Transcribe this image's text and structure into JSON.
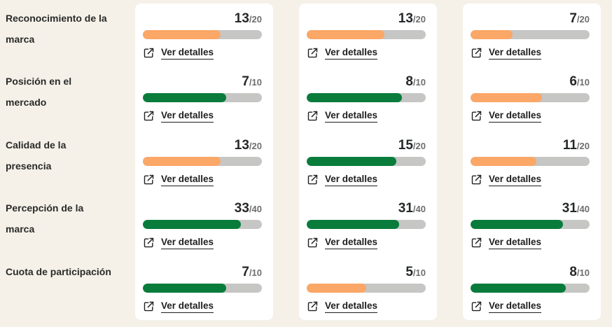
{
  "theme": {
    "page_bg": "#F5F1E8",
    "card_bg": "#FFFFFF",
    "bar_track": "#C6C6C5",
    "bar_orange": "#FBA767",
    "bar_green": "#097C3C",
    "text_dark": "#25282A",
    "text_gray": "#6E6E6E",
    "label_color": "#2A2A2A",
    "link_color": "#1E1E1E"
  },
  "link_label": "Ver detalles",
  "metrics": [
    {
      "label": "Reconocimiento de la marca"
    },
    {
      "label": "Posición en el mercado"
    },
    {
      "label": "Calidad de la presencia"
    },
    {
      "label": "Percepción de la marca"
    },
    {
      "label": "Cuota de participación"
    }
  ],
  "columns": [
    {
      "cells": [
        {
          "score": 13,
          "max": 20,
          "max_label": "/20",
          "percent": 65,
          "color": "orange"
        },
        {
          "score": 7,
          "max": 10,
          "max_label": "/10",
          "percent": 70,
          "color": "green"
        },
        {
          "score": 13,
          "max": 20,
          "max_label": "/20",
          "percent": 65,
          "color": "orange"
        },
        {
          "score": 33,
          "max": 40,
          "max_label": "/40",
          "percent": 82.5,
          "color": "green"
        },
        {
          "score": 7,
          "max": 10,
          "max_label": "/10",
          "percent": 70,
          "color": "green"
        }
      ]
    },
    {
      "cells": [
        {
          "score": 13,
          "max": 20,
          "max_label": "/20",
          "percent": 65,
          "color": "orange"
        },
        {
          "score": 8,
          "max": 10,
          "max_label": "/10",
          "percent": 80,
          "color": "green"
        },
        {
          "score": 15,
          "max": 20,
          "max_label": "/20",
          "percent": 75,
          "color": "green"
        },
        {
          "score": 31,
          "max": 40,
          "max_label": "/40",
          "percent": 77.5,
          "color": "green"
        },
        {
          "score": 5,
          "max": 10,
          "max_label": "/10",
          "percent": 50,
          "color": "orange"
        }
      ]
    },
    {
      "cells": [
        {
          "score": 7,
          "max": 20,
          "max_label": "/20",
          "percent": 35,
          "color": "orange"
        },
        {
          "score": 6,
          "max": 10,
          "max_label": "/10",
          "percent": 60,
          "color": "orange"
        },
        {
          "score": 11,
          "max": 20,
          "max_label": "/20",
          "percent": 55,
          "color": "orange"
        },
        {
          "score": 31,
          "max": 40,
          "max_label": "/40",
          "percent": 77.5,
          "color": "green"
        },
        {
          "score": 8,
          "max": 10,
          "max_label": "/10",
          "percent": 80,
          "color": "green"
        }
      ]
    }
  ]
}
